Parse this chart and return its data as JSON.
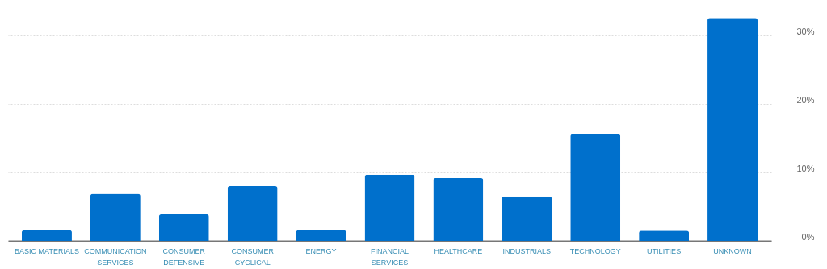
{
  "chart_data": {
    "type": "bar",
    "categories": [
      "BASIC MATERIALS",
      "COMMUNICATION SERVICES",
      "CONSUMER DEFENSIVE",
      "CONSUMER CYCLICAL",
      "ENERGY",
      "FINANCIAL SERVICES",
      "HEALTHCARE",
      "INDUSTRIALS",
      "TECHNOLOGY",
      "UTILITIES",
      "UNKNOWN"
    ],
    "values": [
      1.6,
      6.9,
      3.9,
      8.0,
      1.6,
      9.7,
      9.2,
      6.5,
      15.6,
      1.5,
      32.6
    ],
    "color": "#0070cc",
    "ylim": [
      0,
      35
    ],
    "yticks": [
      {
        "value": 0,
        "label": "0%"
      },
      {
        "value": 10,
        "label": "10%"
      },
      {
        "value": 20,
        "label": "20%"
      },
      {
        "value": 30,
        "label": "30%"
      }
    ],
    "grid": "y"
  }
}
